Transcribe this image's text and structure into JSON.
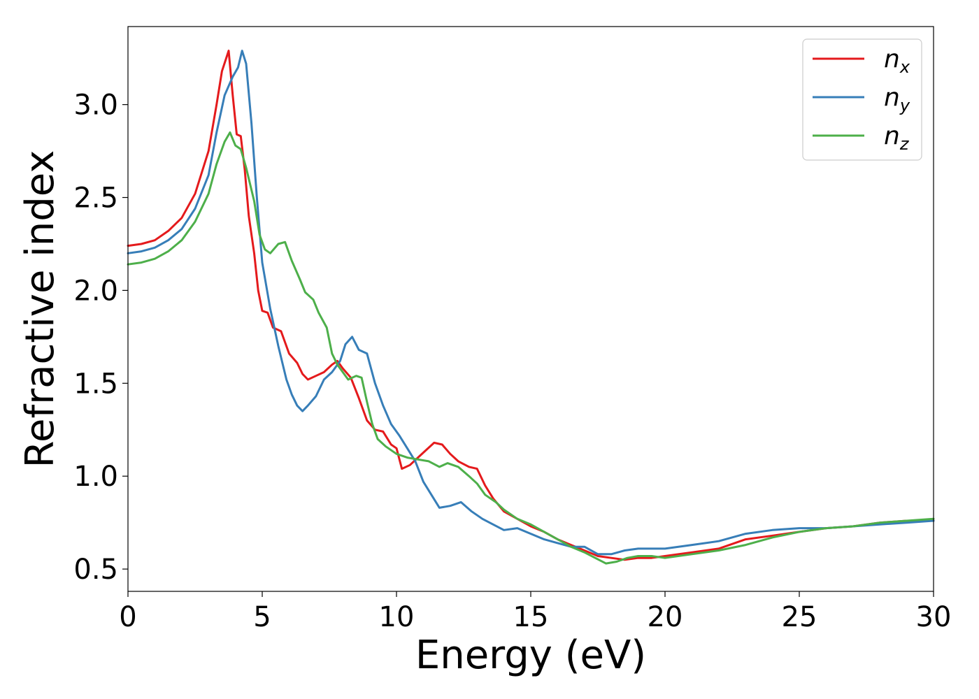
{
  "chart_data": {
    "type": "line",
    "xlabel": "Energy (eV)",
    "ylabel": "Refractive index",
    "xlim": [
      0,
      30
    ],
    "ylim": [
      0.38,
      3.42
    ],
    "xticks": [
      "0",
      "5",
      "10",
      "15",
      "20",
      "25",
      "30"
    ],
    "yticks": [
      "0.5",
      "1.0",
      "1.5",
      "2.0",
      "2.5",
      "3.0"
    ],
    "grid": false,
    "legend_position": "top-right",
    "series": [
      {
        "name": "n",
        "subscript": "x",
        "color": "#e41a1c",
        "points": [
          [
            0,
            2.24
          ],
          [
            0.5,
            2.25
          ],
          [
            1,
            2.27
          ],
          [
            1.5,
            2.32
          ],
          [
            2,
            2.39
          ],
          [
            2.5,
            2.52
          ],
          [
            3,
            2.75
          ],
          [
            3.3,
            3.0
          ],
          [
            3.5,
            3.18
          ],
          [
            3.75,
            3.29
          ],
          [
            3.9,
            3.05
          ],
          [
            4.05,
            2.84
          ],
          [
            4.2,
            2.83
          ],
          [
            4.35,
            2.65
          ],
          [
            4.5,
            2.4
          ],
          [
            4.7,
            2.2
          ],
          [
            4.85,
            2.0
          ],
          [
            5.0,
            1.89
          ],
          [
            5.2,
            1.88
          ],
          [
            5.4,
            1.8
          ],
          [
            5.7,
            1.78
          ],
          [
            6.0,
            1.66
          ],
          [
            6.3,
            1.61
          ],
          [
            6.5,
            1.55
          ],
          [
            6.7,
            1.52
          ],
          [
            7.0,
            1.54
          ],
          [
            7.3,
            1.56
          ],
          [
            7.6,
            1.6
          ],
          [
            7.8,
            1.62
          ],
          [
            8.0,
            1.58
          ],
          [
            8.3,
            1.53
          ],
          [
            8.6,
            1.42
          ],
          [
            8.9,
            1.3
          ],
          [
            9.2,
            1.25
          ],
          [
            9.5,
            1.24
          ],
          [
            9.8,
            1.17
          ],
          [
            10.0,
            1.15
          ],
          [
            10.2,
            1.04
          ],
          [
            10.5,
            1.06
          ],
          [
            10.8,
            1.1
          ],
          [
            11.1,
            1.14
          ],
          [
            11.4,
            1.18
          ],
          [
            11.7,
            1.17
          ],
          [
            12.0,
            1.12
          ],
          [
            12.3,
            1.08
          ],
          [
            12.7,
            1.05
          ],
          [
            13.0,
            1.04
          ],
          [
            13.3,
            0.95
          ],
          [
            13.6,
            0.88
          ],
          [
            14.0,
            0.81
          ],
          [
            14.5,
            0.77
          ],
          [
            15.0,
            0.73
          ],
          [
            15.5,
            0.7
          ],
          [
            16.0,
            0.66
          ],
          [
            16.5,
            0.63
          ],
          [
            17.0,
            0.6
          ],
          [
            17.5,
            0.57
          ],
          [
            18.0,
            0.56
          ],
          [
            18.5,
            0.55
          ],
          [
            19.0,
            0.56
          ],
          [
            19.5,
            0.56
          ],
          [
            20.0,
            0.57
          ],
          [
            21.0,
            0.59
          ],
          [
            22.0,
            0.61
          ],
          [
            23.0,
            0.66
          ],
          [
            24.0,
            0.68
          ],
          [
            25.0,
            0.7
          ],
          [
            26.0,
            0.72
          ],
          [
            27.0,
            0.73
          ],
          [
            28.0,
            0.75
          ],
          [
            29.0,
            0.76
          ],
          [
            30.0,
            0.76
          ]
        ]
      },
      {
        "name": "n",
        "subscript": "y",
        "color": "#377eb8",
        "points": [
          [
            0,
            2.2
          ],
          [
            0.5,
            2.21
          ],
          [
            1,
            2.23
          ],
          [
            1.5,
            2.27
          ],
          [
            2,
            2.33
          ],
          [
            2.5,
            2.44
          ],
          [
            3,
            2.62
          ],
          [
            3.3,
            2.85
          ],
          [
            3.6,
            3.05
          ],
          [
            3.9,
            3.15
          ],
          [
            4.1,
            3.2
          ],
          [
            4.25,
            3.29
          ],
          [
            4.4,
            3.22
          ],
          [
            4.6,
            2.9
          ],
          [
            4.8,
            2.5
          ],
          [
            5.0,
            2.15
          ],
          [
            5.3,
            1.9
          ],
          [
            5.6,
            1.7
          ],
          [
            5.9,
            1.52
          ],
          [
            6.1,
            1.44
          ],
          [
            6.3,
            1.38
          ],
          [
            6.5,
            1.35
          ],
          [
            6.7,
            1.38
          ],
          [
            7.0,
            1.43
          ],
          [
            7.3,
            1.52
          ],
          [
            7.6,
            1.56
          ],
          [
            7.9,
            1.62
          ],
          [
            8.1,
            1.71
          ],
          [
            8.35,
            1.75
          ],
          [
            8.6,
            1.68
          ],
          [
            8.9,
            1.66
          ],
          [
            9.2,
            1.5
          ],
          [
            9.5,
            1.38
          ],
          [
            9.8,
            1.28
          ],
          [
            10.1,
            1.22
          ],
          [
            10.4,
            1.15
          ],
          [
            10.7,
            1.08
          ],
          [
            11.0,
            0.97
          ],
          [
            11.3,
            0.9
          ],
          [
            11.6,
            0.83
          ],
          [
            12.0,
            0.84
          ],
          [
            12.4,
            0.86
          ],
          [
            12.8,
            0.81
          ],
          [
            13.2,
            0.77
          ],
          [
            13.6,
            0.74
          ],
          [
            14.0,
            0.71
          ],
          [
            14.5,
            0.72
          ],
          [
            15.0,
            0.69
          ],
          [
            15.5,
            0.66
          ],
          [
            16.0,
            0.64
          ],
          [
            16.5,
            0.62
          ],
          [
            17.0,
            0.62
          ],
          [
            17.5,
            0.58
          ],
          [
            18.0,
            0.58
          ],
          [
            18.5,
            0.6
          ],
          [
            19.0,
            0.61
          ],
          [
            19.5,
            0.61
          ],
          [
            20.0,
            0.61
          ],
          [
            21.0,
            0.63
          ],
          [
            22.0,
            0.65
          ],
          [
            23.0,
            0.69
          ],
          [
            24.0,
            0.71
          ],
          [
            25.0,
            0.72
          ],
          [
            26.0,
            0.72
          ],
          [
            27.0,
            0.73
          ],
          [
            28.0,
            0.74
          ],
          [
            29.0,
            0.75
          ],
          [
            30.0,
            0.76
          ]
        ]
      },
      {
        "name": "n",
        "subscript": "z",
        "color": "#4daf4a",
        "points": [
          [
            0,
            2.14
          ],
          [
            0.5,
            2.15
          ],
          [
            1,
            2.17
          ],
          [
            1.5,
            2.21
          ],
          [
            2,
            2.27
          ],
          [
            2.5,
            2.37
          ],
          [
            3,
            2.52
          ],
          [
            3.3,
            2.68
          ],
          [
            3.6,
            2.8
          ],
          [
            3.8,
            2.85
          ],
          [
            4.0,
            2.78
          ],
          [
            4.2,
            2.76
          ],
          [
            4.4,
            2.66
          ],
          [
            4.7,
            2.48
          ],
          [
            4.9,
            2.3
          ],
          [
            5.1,
            2.22
          ],
          [
            5.3,
            2.2
          ],
          [
            5.6,
            2.25
          ],
          [
            5.85,
            2.26
          ],
          [
            6.1,
            2.16
          ],
          [
            6.4,
            2.06
          ],
          [
            6.6,
            1.99
          ],
          [
            6.9,
            1.95
          ],
          [
            7.1,
            1.88
          ],
          [
            7.4,
            1.8
          ],
          [
            7.6,
            1.66
          ],
          [
            7.8,
            1.6
          ],
          [
            8.0,
            1.56
          ],
          [
            8.2,
            1.52
          ],
          [
            8.5,
            1.54
          ],
          [
            8.7,
            1.53
          ],
          [
            8.9,
            1.4
          ],
          [
            9.1,
            1.28
          ],
          [
            9.3,
            1.2
          ],
          [
            9.6,
            1.16
          ],
          [
            10.0,
            1.12
          ],
          [
            10.4,
            1.1
          ],
          [
            10.8,
            1.09
          ],
          [
            11.2,
            1.08
          ],
          [
            11.6,
            1.05
          ],
          [
            11.9,
            1.07
          ],
          [
            12.3,
            1.05
          ],
          [
            12.7,
            1.0
          ],
          [
            13.0,
            0.96
          ],
          [
            13.3,
            0.9
          ],
          [
            13.7,
            0.86
          ],
          [
            14.0,
            0.82
          ],
          [
            14.5,
            0.77
          ],
          [
            15.0,
            0.74
          ],
          [
            15.5,
            0.7
          ],
          [
            16.0,
            0.66
          ],
          [
            16.5,
            0.62
          ],
          [
            17.0,
            0.59
          ],
          [
            17.4,
            0.56
          ],
          [
            17.8,
            0.53
          ],
          [
            18.2,
            0.54
          ],
          [
            18.6,
            0.56
          ],
          [
            19.0,
            0.57
          ],
          [
            19.5,
            0.57
          ],
          [
            20.0,
            0.56
          ],
          [
            21.0,
            0.58
          ],
          [
            22.0,
            0.6
          ],
          [
            23.0,
            0.63
          ],
          [
            24.0,
            0.67
          ],
          [
            25.0,
            0.7
          ],
          [
            26.0,
            0.72
          ],
          [
            27.0,
            0.73
          ],
          [
            28.0,
            0.75
          ],
          [
            29.0,
            0.76
          ],
          [
            30.0,
            0.77
          ]
        ]
      }
    ]
  }
}
